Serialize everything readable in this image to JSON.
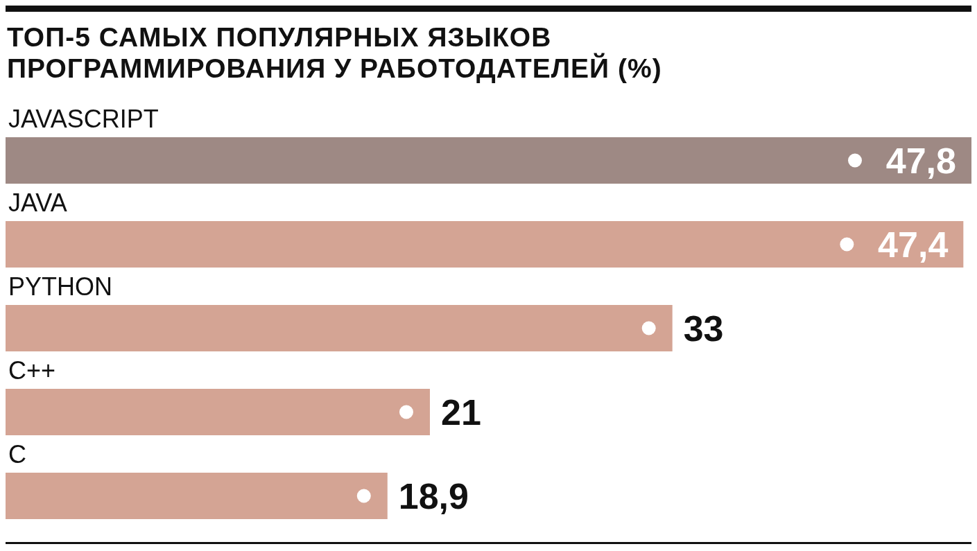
{
  "chart_data": {
    "type": "bar",
    "orientation": "horizontal",
    "title": "ТОП-5 САМЫХ ПОПУЛЯРНЫХ ЯЗЫКОВ ПРОГРАММИРОВАНИЯ У РАБОТОДАТЕЛЕЙ (%)",
    "categories": [
      "JAVASCRIPT",
      "JAVA",
      "PYTHON",
      "C++",
      "C"
    ],
    "values": [
      47.8,
      47.4,
      33,
      21,
      18.9
    ],
    "value_labels": [
      "47,8",
      "47,4",
      "33",
      "21",
      "18,9"
    ],
    "colors": [
      "#9e8984",
      "#d4a494",
      "#d4a494",
      "#d4a494",
      "#d4a494"
    ]
  }
}
